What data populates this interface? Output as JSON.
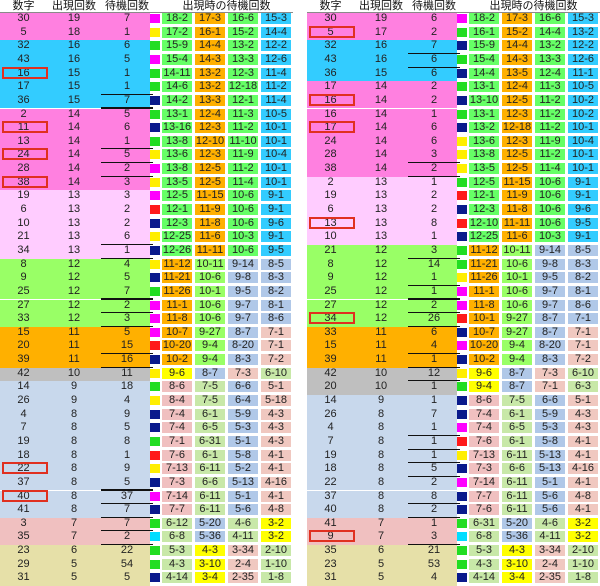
{
  "header": [
    "数字",
    "出現回数",
    "待機回数",
    "出現時の待機回数"
  ],
  "colors": {
    "blue": "#3399ff",
    "pink": "#ff80e0",
    "cyan": "#33ccff",
    "green": "#66ff66",
    "lpink": "#ffccff",
    "lgreen": "#99ff66",
    "orange": "#ffb000",
    "gray": "#bfbfbf",
    "lblue": "#c8d8ec",
    "rose": "#f0c0c0",
    "beige": "#e6e0a8",
    "yellow": "#ffff00",
    "sb": "#b0c8e8",
    "sr": "#f0c8c0",
    "sg": "#c8e8a8",
    "white": "#ffffff"
  },
  "swatch_palette": {
    "g": "#22dd22",
    "y": "#ffee00",
    "m": "#ff00ff",
    "n": "#0a1a8c",
    "r": "#ff1a1a",
    "c": "#00ddff"
  },
  "left": [
    [
      "30",
      "19",
      "7",
      "m",
      "18-2",
      "17-3",
      "16-6",
      "15-3"
    ],
    [
      "5",
      "18",
      "1",
      "y",
      "17-2",
      "16-1",
      "15-2",
      "14-4"
    ],
    [
      "32",
      "16",
      "6",
      "g",
      "15-9",
      "14-4",
      "13-2",
      "12-2"
    ],
    [
      "43",
      "16",
      "5",
      "m",
      "15-4",
      "14-3",
      "13-3",
      "12-6"
    ],
    [
      "16",
      "15",
      "1",
      "g",
      "14-11",
      "13-2",
      "12-3",
      "11-4"
    ],
    [
      "17",
      "15",
      "1",
      "g",
      "14-6",
      "13-2",
      "12-18",
      "11-2"
    ],
    [
      "36",
      "15",
      "7",
      "n",
      "14-2",
      "13-3",
      "12-1",
      "11-4"
    ],
    [
      "2",
      "14",
      "5",
      "g",
      "13-1",
      "12-4",
      "11-3",
      "10-5"
    ],
    [
      "11",
      "14",
      "6",
      "n",
      "13-16",
      "12-3",
      "11-2",
      "10-1"
    ],
    [
      "13",
      "14",
      "1",
      "g",
      "13-8",
      "12-10",
      "11-10",
      "10-1"
    ],
    [
      "24",
      "14",
      "5",
      "y",
      "13-6",
      "12-3",
      "11-9",
      "10-4"
    ],
    [
      "28",
      "14",
      "2",
      "m",
      "13-8",
      "12-5",
      "11-2",
      "10-1"
    ],
    [
      "38",
      "14",
      "3",
      "y",
      "13-5",
      "12-5",
      "11-4",
      "10-1"
    ],
    [
      "19",
      "13",
      "3",
      "m",
      "12-5",
      "11-15",
      "10-6",
      "9-1"
    ],
    [
      "6",
      "13",
      "2",
      "r",
      "12-1",
      "11-9",
      "10-6",
      "9-1"
    ],
    [
      "10",
      "13",
      "2",
      "n",
      "12-3",
      "11-8",
      "10-6",
      "9-6"
    ],
    [
      "21",
      "13",
      "6",
      "y",
      "12-25",
      "11-6",
      "10-3",
      "9-1"
    ],
    [
      "34",
      "13",
      "1",
      "n",
      "12-26",
      "11-11",
      "10-6",
      "9-5"
    ],
    [
      "8",
      "12",
      "4",
      "y",
      "11-12",
      "10-11",
      "9-14",
      "8-5"
    ],
    [
      "9",
      "12",
      "5",
      "n",
      "11-21",
      "10-6",
      "9-8",
      "8-3"
    ],
    [
      "25",
      "12",
      "7",
      "g",
      "11-26",
      "10-1",
      "9-5",
      "8-2"
    ],
    [
      "27",
      "12",
      "2",
      "m",
      "11-1",
      "10-6",
      "9-7",
      "8-1"
    ],
    [
      "33",
      "12",
      "3",
      "m",
      "11-8",
      "10-6",
      "9-7",
      "8-6"
    ],
    [
      "15",
      "11",
      "5",
      "m",
      "10-7",
      "9-27",
      "8-7",
      "7-1"
    ],
    [
      "20",
      "11",
      "15",
      "r",
      "10-20",
      "9-4",
      "8-20",
      "7-1"
    ],
    [
      "39",
      "11",
      "16",
      "n",
      "10-2",
      "9-4",
      "8-3",
      "7-2"
    ],
    [
      "42",
      "10",
      "11",
      "y",
      "9-6",
      "8-7",
      "7-3",
      "6-10"
    ],
    [
      "14",
      "9",
      "18",
      "g",
      "8-6",
      "7-5",
      "6-6",
      "5-1"
    ],
    [
      "26",
      "9",
      "4",
      "y",
      "8-4",
      "7-5",
      "6-4",
      "5-18"
    ],
    [
      "4",
      "8",
      "9",
      "n",
      "7-4",
      "6-1",
      "5-9",
      "4-3"
    ],
    [
      "7",
      "8",
      "5",
      "n",
      "7-4",
      "6-5",
      "5-3",
      "4-3"
    ],
    [
      "19",
      "8",
      "8",
      "g",
      "7-1",
      "6-31",
      "5-1",
      "4-3"
    ],
    [
      "18",
      "8",
      "1",
      "r",
      "7-6",
      "6-1",
      "5-8",
      "4-1"
    ],
    [
      "22",
      "8",
      "9",
      "y",
      "7-13",
      "6-11",
      "5-2",
      "4-1"
    ],
    [
      "37",
      "8",
      "5",
      "n",
      "7-3",
      "6-6",
      "5-13",
      "4-16"
    ],
    [
      "40",
      "8",
      "37",
      "m",
      "7-14",
      "6-11",
      "5-1",
      "4-1"
    ],
    [
      "41",
      "8",
      "7",
      "n",
      "7-7",
      "6-11",
      "5-6",
      "4-8"
    ],
    [
      "3",
      "7",
      "7",
      "g",
      "6-12",
      "5-20",
      "4-6",
      "3-2"
    ],
    [
      "35",
      "7",
      "2",
      "c",
      "6-8",
      "5-36",
      "4-11",
      "3-2"
    ],
    [
      "23",
      "6",
      "22",
      "g",
      "5-3",
      "4-3",
      "3-34",
      "2-10"
    ],
    [
      "29",
      "5",
      "54",
      "g",
      "4-3",
      "3-10",
      "2-4",
      "1-10"
    ],
    [
      "31",
      "5",
      "5",
      "n",
      "4-14",
      "3-4",
      "2-35",
      "1-8"
    ]
  ],
  "right": [
    [
      "30",
      "19",
      "6",
      "m",
      "18-2",
      "17-3",
      "16-6",
      "15-3"
    ],
    [
      "5",
      "17",
      "2",
      "g",
      "16-1",
      "15-2",
      "14-4",
      "13-2"
    ],
    [
      "32",
      "16",
      "7",
      "n",
      "15-9",
      "14-4",
      "13-2",
      "12-2"
    ],
    [
      "43",
      "16",
      "6",
      "g",
      "15-4",
      "14-3",
      "13-3",
      "12-6"
    ],
    [
      "36",
      "15",
      "6",
      "n",
      "14-4",
      "13-5",
      "12-4",
      "11-1"
    ],
    [
      "17",
      "14",
      "2",
      "g",
      "13-1",
      "12-4",
      "11-3",
      "10-5"
    ],
    [
      "16",
      "14",
      "2",
      "n",
      "13-10",
      "12-5",
      "11-2",
      "10-2"
    ],
    [
      "16",
      "14",
      "1",
      "g",
      "13-1",
      "12-3",
      "11-2",
      "10-2"
    ],
    [
      "17",
      "14",
      "6",
      "n",
      "13-2",
      "12-18",
      "11-2",
      "10-1"
    ],
    [
      "24",
      "14",
      "6",
      "y",
      "13-6",
      "12-3",
      "11-9",
      "10-4"
    ],
    [
      "28",
      "14",
      "3",
      "y",
      "13-8",
      "12-5",
      "11-2",
      "10-1"
    ],
    [
      "38",
      "14",
      "2",
      "y",
      "13-5",
      "12-5",
      "11-4",
      "10-1"
    ],
    [
      "2",
      "13",
      "1",
      "g",
      "12-5",
      "11-15",
      "10-6",
      "9-1"
    ],
    [
      "19",
      "13",
      "2",
      "r",
      "12-1",
      "11-9",
      "10-6",
      "9-1"
    ],
    [
      "6",
      "13",
      "2",
      "n",
      "12-3",
      "11-8",
      "10-6",
      "9-6"
    ],
    [
      "13",
      "13",
      "8",
      "r",
      "12-10",
      "11-11",
      "10-6",
      "9-5"
    ],
    [
      "10",
      "13",
      "1",
      "n",
      "12-25",
      "11-6",
      "10-3",
      "9-1"
    ],
    [
      "21",
      "12",
      "3",
      "g",
      "11-12",
      "10-11",
      "9-14",
      "8-5"
    ],
    [
      "8",
      "12",
      "14",
      "g",
      "11-21",
      "10-6",
      "9-8",
      "8-3"
    ],
    [
      "9",
      "12",
      "1",
      "y",
      "11-26",
      "10-1",
      "9-5",
      "8-2"
    ],
    [
      "25",
      "12",
      "1",
      "m",
      "11-1",
      "10-6",
      "9-7",
      "8-1"
    ],
    [
      "27",
      "12",
      "2",
      "m",
      "11-8",
      "10-6",
      "9-7",
      "8-6"
    ],
    [
      "34",
      "12",
      "26",
      "r",
      "10-1",
      "9-27",
      "8-7",
      "7-1"
    ],
    [
      "33",
      "11",
      "6",
      "n",
      "10-7",
      "9-27",
      "8-7",
      "7-1"
    ],
    [
      "15",
      "11",
      "4",
      "m",
      "10-20",
      "9-4",
      "8-20",
      "7-1"
    ],
    [
      "39",
      "11",
      "1",
      "n",
      "10-2",
      "9-4",
      "8-3",
      "7-2"
    ],
    [
      "42",
      "10",
      "12",
      "y",
      "9-6",
      "8-7",
      "7-3",
      "6-10"
    ],
    [
      "20",
      "10",
      "1",
      "g",
      "9-4",
      "8-7",
      "7-1",
      "6-3"
    ],
    [
      "14",
      "9",
      "1",
      "n",
      "8-6",
      "7-5",
      "6-6",
      "5-1"
    ],
    [
      "26",
      "8",
      "7",
      "n",
      "7-4",
      "6-1",
      "5-9",
      "4-3"
    ],
    [
      "4",
      "8",
      "1",
      "m",
      "7-4",
      "6-5",
      "5-3",
      "4-3"
    ],
    [
      "7",
      "8",
      "1",
      "r",
      "7-6",
      "6-1",
      "5-8",
      "4-1"
    ],
    [
      "19",
      "8",
      "1",
      "y",
      "7-13",
      "6-11",
      "5-13",
      "4-1"
    ],
    [
      "18",
      "8",
      "5",
      "n",
      "7-3",
      "6-6",
      "5-13",
      "4-16"
    ],
    [
      "22",
      "8",
      "2",
      "m",
      "7-14",
      "6-11",
      "5-1",
      "4-1"
    ],
    [
      "37",
      "8",
      "8",
      "n",
      "7-7",
      "6-11",
      "5-6",
      "4-8"
    ],
    [
      "40",
      "8",
      "2",
      "n",
      "7-6",
      "6-11",
      "5-6",
      "4-1"
    ],
    [
      "41",
      "7",
      "1",
      "g",
      "6-31",
      "5-20",
      "4-6",
      "3-2"
    ],
    [
      "9",
      "7",
      "3",
      "c",
      "6-8",
      "5-36",
      "4-11",
      "3-2"
    ],
    [
      "35",
      "6",
      "21",
      "g",
      "5-3",
      "4-3",
      "3-34",
      "2-10"
    ],
    [
      "23",
      "5",
      "53",
      "g",
      "4-3",
      "3-10",
      "2-4",
      "1-10"
    ],
    [
      "31",
      "5",
      "4",
      "n",
      "4-14",
      "3-4",
      "2-35",
      "1-8"
    ]
  ]
}
